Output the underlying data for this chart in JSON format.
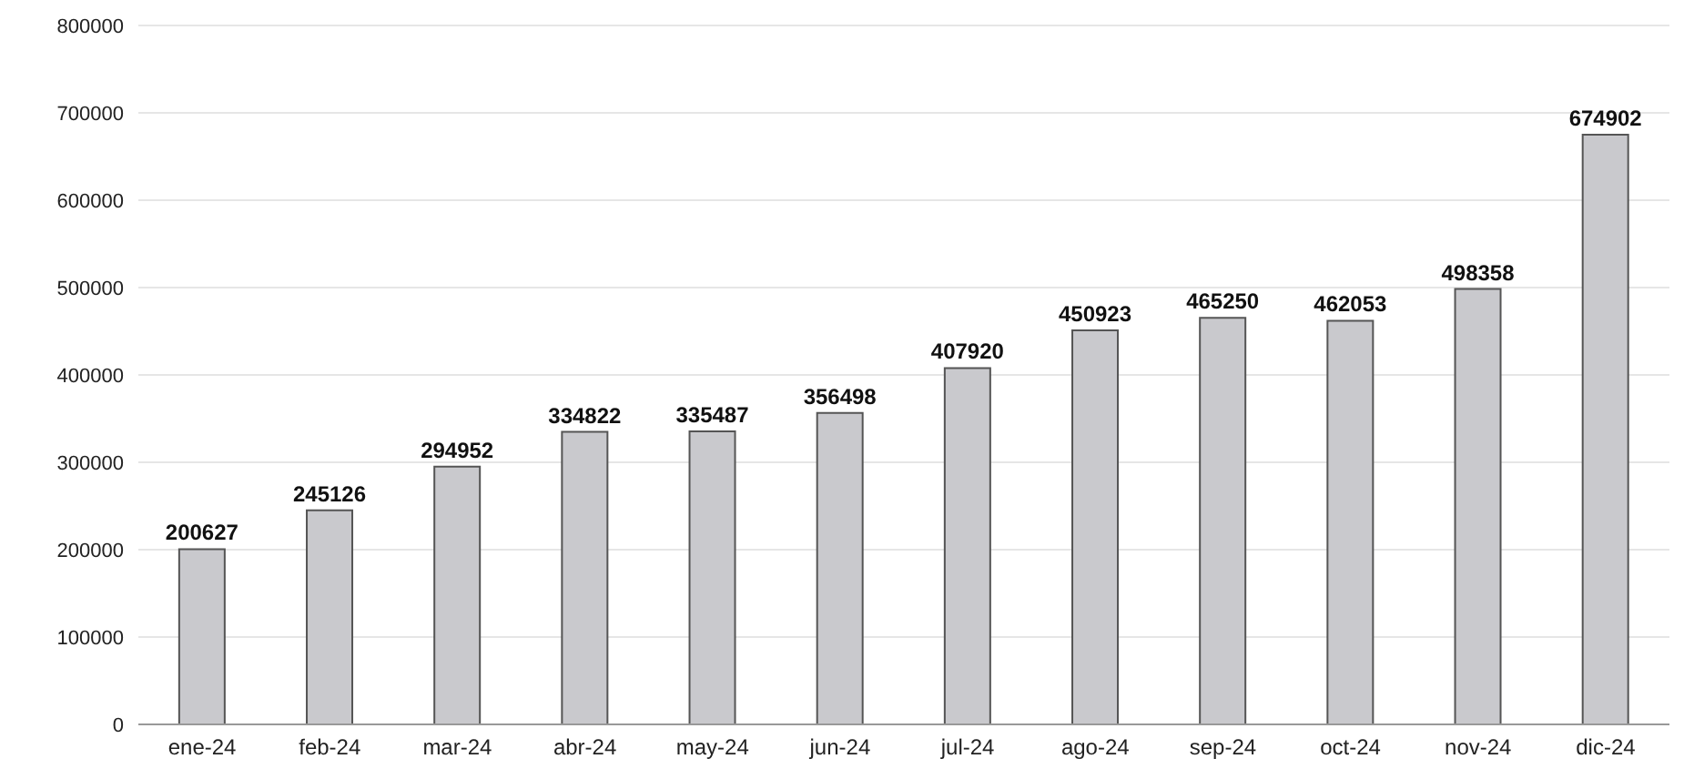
{
  "chart_data": {
    "type": "bar",
    "categories": [
      "ene-24",
      "feb-24",
      "mar-24",
      "abr-24",
      "may-24",
      "jun-24",
      "jul-24",
      "ago-24",
      "sep-24",
      "oct-24",
      "nov-24",
      "dic-24"
    ],
    "values": [
      200627,
      245126,
      294952,
      334822,
      335487,
      356498,
      407920,
      450923,
      465250,
      462053,
      498358,
      674902
    ],
    "color": "#c9c9cd",
    "ylim": [
      0,
      800000
    ],
    "yticks": [
      0,
      100000,
      200000,
      300000,
      400000,
      500000,
      600000,
      700000,
      800000
    ],
    "grid": "y",
    "data_labels": true
  }
}
